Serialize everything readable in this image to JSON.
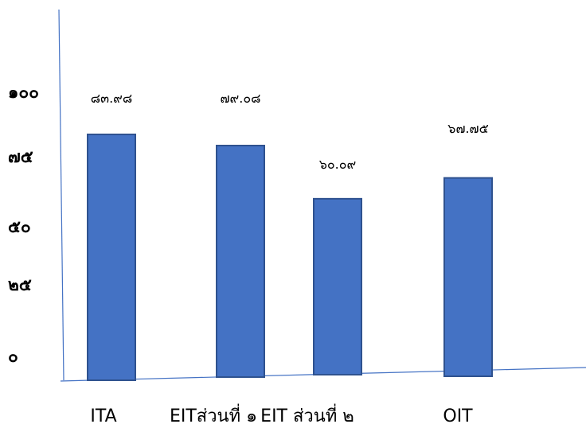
{
  "chart_data": {
    "type": "bar",
    "categories": [
      "ITA",
      "EITส่วนที่ ๑",
      "EIT ส่วนที่ ๒",
      "OIT"
    ],
    "values": [
      83.98,
      79.08,
      60.09,
      67.75
    ],
    "data_labels": [
      "๘๓.๙๘",
      "๗๙.๐๘",
      "๖๐.๐๙",
      "๖๗.๗๕"
    ],
    "yticks": [
      {
        "value": 0,
        "label": "๐"
      },
      {
        "value": 25,
        "label": "๒๕"
      },
      {
        "value": 50,
        "label": "๕๐"
      },
      {
        "value": 75,
        "label": "๗๕"
      },
      {
        "value": 100,
        "label": "๑๐๐"
      }
    ],
    "ylim": [
      0,
      115
    ],
    "bar_color": "#4472c4",
    "axis_color": "#4472c4",
    "grid": false,
    "legend": "none"
  }
}
